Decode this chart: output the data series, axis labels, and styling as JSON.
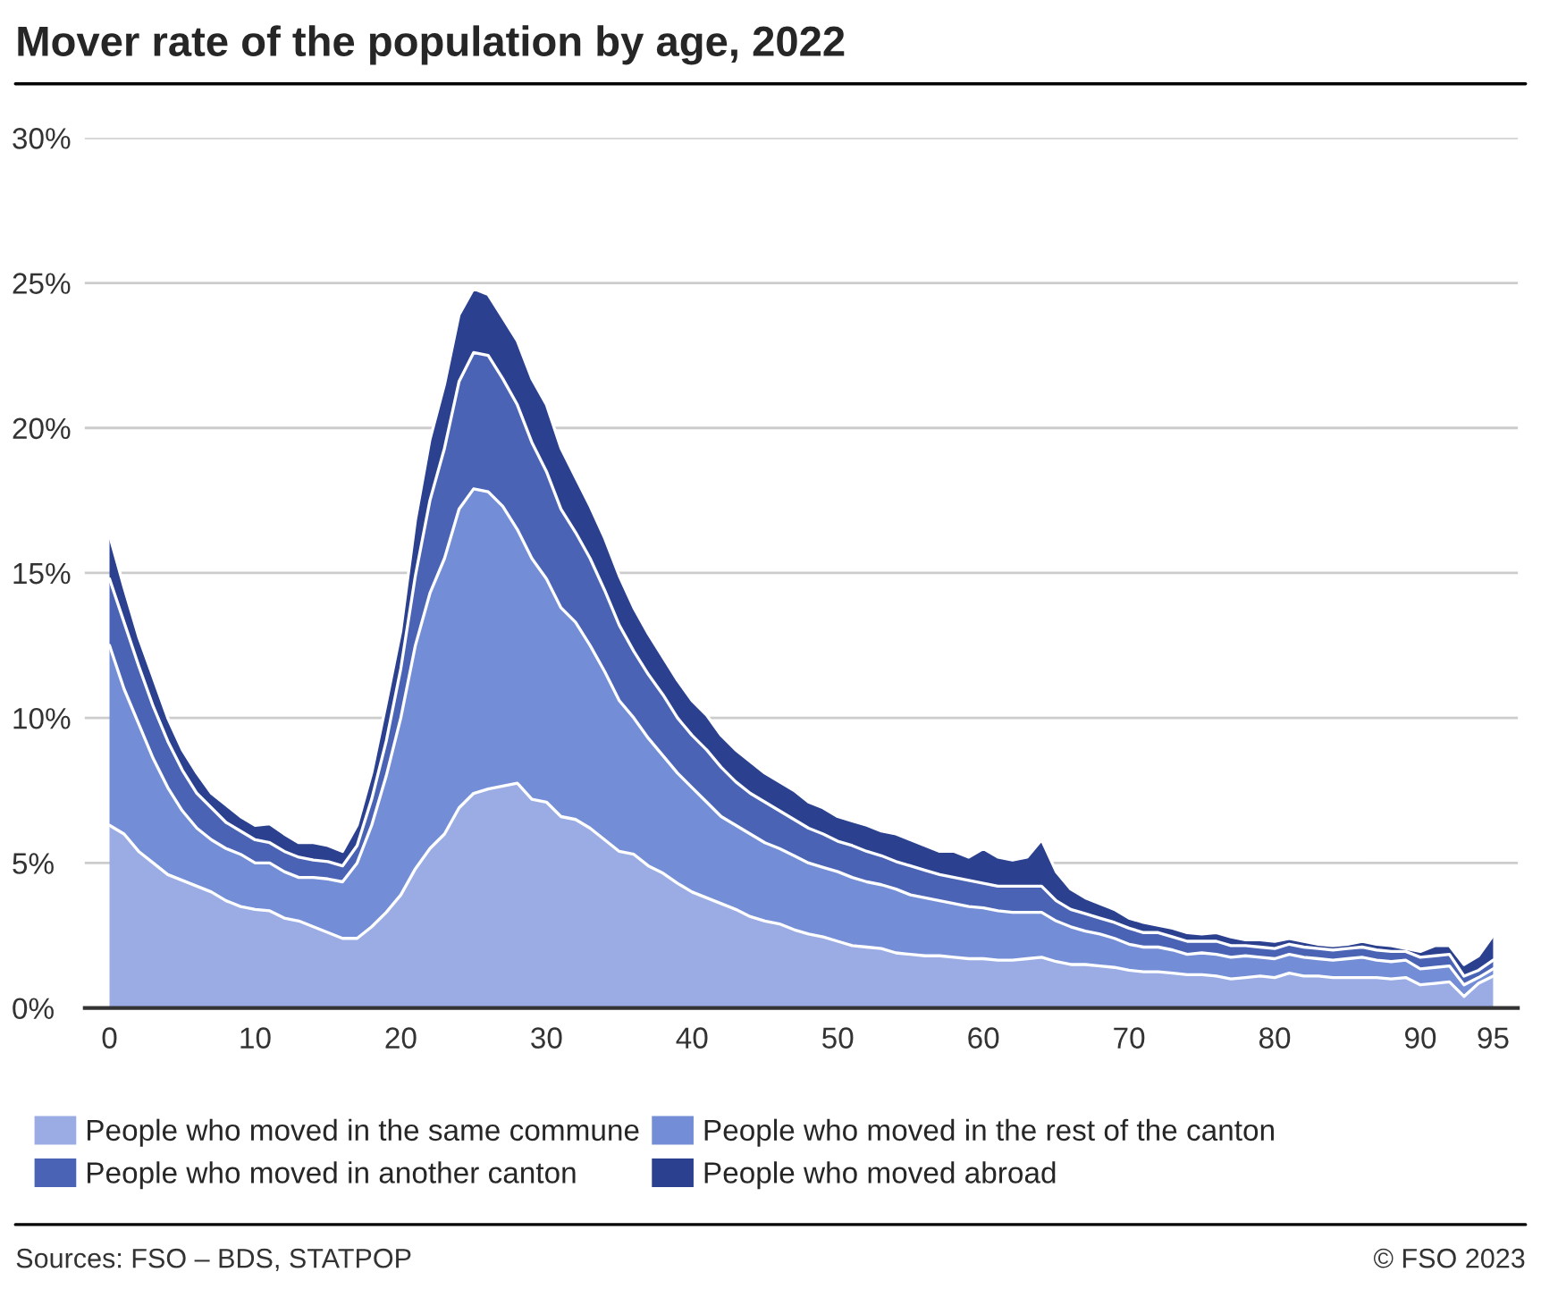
{
  "chart_data": {
    "type": "area",
    "stacked": true,
    "title": "Mover rate of the population by age, 2022",
    "x": [
      0,
      1,
      2,
      3,
      4,
      5,
      6,
      7,
      8,
      9,
      10,
      11,
      12,
      13,
      14,
      15,
      16,
      17,
      18,
      19,
      20,
      21,
      22,
      23,
      24,
      25,
      26,
      27,
      28,
      29,
      30,
      31,
      32,
      33,
      34,
      35,
      36,
      37,
      38,
      39,
      40,
      41,
      42,
      43,
      44,
      45,
      46,
      47,
      48,
      49,
      50,
      51,
      52,
      53,
      54,
      55,
      56,
      57,
      58,
      59,
      60,
      61,
      62,
      63,
      64,
      65,
      66,
      67,
      68,
      69,
      70,
      71,
      72,
      73,
      74,
      75,
      76,
      77,
      78,
      79,
      80,
      81,
      82,
      83,
      84,
      85,
      86,
      87,
      88,
      89,
      90,
      91,
      92,
      93,
      94,
      95
    ],
    "series": [
      {
        "name": "People who moved in the same commune",
        "color": "#9aace3",
        "values": [
          6.3,
          6.0,
          5.4,
          5.0,
          4.6,
          4.4,
          4.2,
          4.0,
          3.7,
          3.5,
          3.4,
          3.35,
          3.1,
          3.0,
          2.8,
          2.6,
          2.4,
          2.4,
          2.8,
          3.3,
          3.9,
          4.8,
          5.5,
          6.0,
          6.9,
          7.4,
          7.55,
          7.65,
          7.75,
          7.2,
          7.1,
          6.6,
          6.5,
          6.2,
          5.8,
          5.4,
          5.3,
          4.9,
          4.65,
          4.3,
          4.0,
          3.8,
          3.6,
          3.4,
          3.15,
          3.0,
          2.9,
          2.7,
          2.55,
          2.45,
          2.3,
          2.15,
          2.1,
          2.05,
          1.9,
          1.85,
          1.8,
          1.8,
          1.75,
          1.7,
          1.7,
          1.65,
          1.65,
          1.7,
          1.75,
          1.6,
          1.5,
          1.5,
          1.45,
          1.4,
          1.3,
          1.25,
          1.25,
          1.2,
          1.15,
          1.15,
          1.1,
          1.0,
          1.05,
          1.1,
          1.05,
          1.2,
          1.1,
          1.1,
          1.05,
          1.05,
          1.05,
          1.05,
          1.0,
          1.05,
          0.8,
          0.85,
          0.9,
          0.4,
          0.85,
          1.1
        ]
      },
      {
        "name": "People who moved in the rest of the canton",
        "color": "#738dd6",
        "values": [
          6.2,
          5.0,
          4.4,
          3.6,
          3.0,
          2.4,
          2.0,
          1.8,
          1.8,
          1.8,
          1.6,
          1.65,
          1.6,
          1.5,
          1.7,
          1.85,
          1.95,
          2.6,
          3.5,
          4.7,
          6.1,
          7.7,
          8.8,
          9.5,
          10.3,
          10.5,
          10.25,
          9.65,
          8.75,
          8.3,
          7.7,
          7.2,
          6.8,
          6.3,
          5.8,
          5.2,
          4.7,
          4.4,
          4.05,
          3.8,
          3.6,
          3.3,
          3.0,
          2.9,
          2.85,
          2.7,
          2.6,
          2.55,
          2.45,
          2.4,
          2.4,
          2.35,
          2.25,
          2.2,
          2.2,
          2.05,
          2.0,
          1.9,
          1.85,
          1.8,
          1.75,
          1.7,
          1.65,
          1.6,
          1.55,
          1.4,
          1.3,
          1.15,
          1.1,
          1.0,
          0.9,
          0.85,
          0.85,
          0.8,
          0.7,
          0.75,
          0.75,
          0.75,
          0.75,
          0.65,
          0.65,
          0.65,
          0.65,
          0.6,
          0.6,
          0.65,
          0.7,
          0.6,
          0.6,
          0.6,
          0.55,
          0.55,
          0.55,
          0.4,
          0.2,
          0.25
        ]
      },
      {
        "name": "People who moved in another canton",
        "color": "#4a63b5",
        "values": [
          2.3,
          2.3,
          2.0,
          1.8,
          1.6,
          1.4,
          1.2,
          1.1,
          0.9,
          0.8,
          0.8,
          0.7,
          0.7,
          0.7,
          0.6,
          0.6,
          0.55,
          0.6,
          0.9,
          1.2,
          1.7,
          2.4,
          3.2,
          3.8,
          4.4,
          4.7,
          4.7,
          4.4,
          4.3,
          4.0,
          3.7,
          3.4,
          3.1,
          3.0,
          2.8,
          2.6,
          2.3,
          2.2,
          2.1,
          1.9,
          1.8,
          1.8,
          1.7,
          1.5,
          1.4,
          1.4,
          1.3,
          1.25,
          1.2,
          1.15,
          1.05,
          1.1,
          1.05,
          1.0,
          0.95,
          1.0,
          0.95,
          0.9,
          0.9,
          0.9,
          0.85,
          0.85,
          0.9,
          0.9,
          0.9,
          0.7,
          0.6,
          0.6,
          0.55,
          0.55,
          0.55,
          0.5,
          0.5,
          0.45,
          0.45,
          0.4,
          0.45,
          0.4,
          0.35,
          0.35,
          0.35,
          0.35,
          0.35,
          0.35,
          0.35,
          0.35,
          0.35,
          0.35,
          0.35,
          0.3,
          0.4,
          0.4,
          0.4,
          0.3,
          0.25,
          0.3
        ]
      },
      {
        "name": "People who moved abroad",
        "color": "#2b418f",
        "values": [
          1.5,
          1.2,
          1.0,
          1.0,
          0.8,
          0.7,
          0.7,
          0.5,
          0.6,
          0.5,
          0.5,
          0.65,
          0.6,
          0.5,
          0.6,
          0.55,
          0.5,
          0.7,
          0.9,
          1.3,
          1.3,
          1.9,
          2.1,
          2.2,
          2.3,
          2.2,
          2.1,
          2.1,
          2.2,
          2.2,
          2.3,
          2.1,
          1.9,
          1.8,
          1.8,
          1.7,
          1.5,
          1.4,
          1.3,
          1.3,
          1.2,
          1.2,
          1.1,
          1.1,
          1.1,
          1.0,
          1.0,
          1.0,
          0.9,
          0.9,
          0.85,
          0.85,
          0.9,
          0.85,
          0.95,
          0.9,
          0.85,
          0.8,
          0.9,
          0.8,
          1.2,
          1.0,
          0.9,
          1.0,
          1.6,
          1.0,
          0.7,
          0.55,
          0.5,
          0.45,
          0.35,
          0.35,
          0.25,
          0.3,
          0.3,
          0.25,
          0.3,
          0.3,
          0.2,
          0.25,
          0.25,
          0.2,
          0.2,
          0.15,
          0.15,
          0.15,
          0.2,
          0.2,
          0.2,
          0.1,
          0.2,
          0.35,
          0.3,
          0.4,
          0.5,
          0.85
        ]
      }
    ],
    "xlim": [
      -1.7,
      96.7
    ],
    "xticks": [
      0,
      10,
      20,
      30,
      40,
      50,
      60,
      70,
      80,
      90,
      95
    ],
    "ylim": [
      0,
      30
    ],
    "yticks": [
      {
        "value": 0,
        "label": "0%"
      },
      {
        "value": 5,
        "label": "5%"
      },
      {
        "value": 10,
        "label": "10%"
      },
      {
        "value": 15,
        "label": "15%"
      },
      {
        "value": 20,
        "label": "20%"
      },
      {
        "value": 25,
        "label": "25%"
      },
      {
        "value": 30,
        "label": "30%"
      }
    ],
    "grid": "y",
    "legend": "bottom",
    "annotations": [
      "Sources: FSO – BDS, STATPOP",
      "© FSO 2023"
    ]
  }
}
